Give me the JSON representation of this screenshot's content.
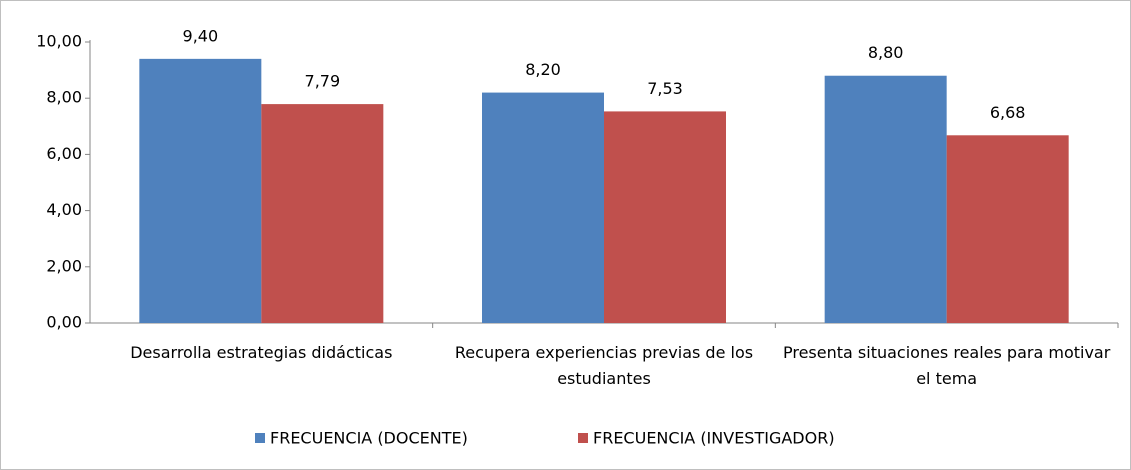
{
  "chart_data": {
    "type": "bar",
    "categories": [
      "Desarrolla estrategias didácticas",
      "Recupera experiencias previas de los estudiantes",
      "Presenta situaciones reales para motivar el tema"
    ],
    "series": [
      {
        "name": "FRECUENCIA (DOCENTE)",
        "color": "#4f81bd",
        "values": [
          9.4,
          8.2,
          8.8
        ],
        "value_labels": [
          "9,40",
          "8,20",
          "8,80"
        ]
      },
      {
        "name": "FRECUENCIA (INVESTIGADOR)",
        "color": "#c0504d",
        "values": [
          7.79,
          7.53,
          6.68
        ],
        "value_labels": [
          "7,79",
          "7,53",
          "6,68"
        ]
      }
    ],
    "ylim": [
      0,
      10
    ],
    "yticks": [
      {
        "value": 0,
        "label": "0,00"
      },
      {
        "value": 2,
        "label": "2,00"
      },
      {
        "value": 4,
        "label": "4,00"
      },
      {
        "value": 6,
        "label": "6,00"
      },
      {
        "value": 8,
        "label": "8,00"
      },
      {
        "value": 10,
        "label": "10,00"
      }
    ],
    "grid": false,
    "legend": "bottom"
  }
}
